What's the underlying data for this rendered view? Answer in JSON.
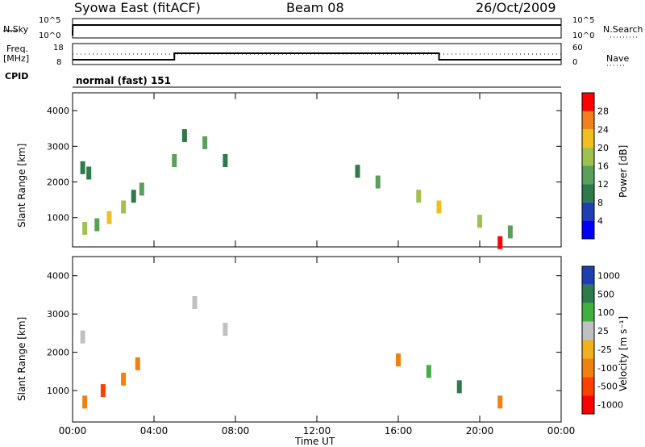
{
  "header": {
    "title": "Syowa East (fitACF)",
    "beam": "Beam 08",
    "date": "26/Oct/2009"
  },
  "top_panel": {
    "left_label": "N.Sky",
    "right_label": "N.Search",
    "left_ticks": [
      "10^5",
      "10^0"
    ],
    "right_ticks": [
      "10^5",
      "10^0"
    ]
  },
  "freq_panel": {
    "left_label_1": "Freq.",
    "left_label_2": "[MHz]",
    "right_label": "Nave",
    "left_ticks": [
      "18",
      "8"
    ],
    "right_ticks": [
      "60",
      "0"
    ]
  },
  "cpid": {
    "label": "CPID",
    "value": "normal (fast) 151"
  },
  "chart_data": [
    {
      "type": "heatmap",
      "name": "power",
      "ylabel": "Slant Range [km]",
      "y_ticks": [
        "4000",
        "3000",
        "2000",
        "1000"
      ],
      "y_tick_values": [
        4000,
        3000,
        2000,
        1000
      ],
      "ylim": [
        180,
        4500
      ],
      "colorbar_label": "Power [dB]",
      "colorbar_ticks": [
        "28",
        "24",
        "20",
        "16",
        "12",
        "8",
        "4"
      ],
      "colorbar_colors": [
        "#0000ff",
        "#1e3fb0",
        "#2e7a4a",
        "#5aa05a",
        "#a0c050",
        "#f0c020",
        "#f08020",
        "#ff0000"
      ],
      "cells": [
        {
          "t": 0.5,
          "r": 2400,
          "v": 8
        },
        {
          "t": 0.8,
          "r": 2250,
          "v": 8
        },
        {
          "t": 0.6,
          "r": 700,
          "v": 16
        },
        {
          "t": 1.2,
          "r": 800,
          "v": 12
        },
        {
          "t": 1.8,
          "r": 1000,
          "v": 20
        },
        {
          "t": 2.5,
          "r": 1300,
          "v": 16
        },
        {
          "t": 3.0,
          "r": 1600,
          "v": 8
        },
        {
          "t": 3.4,
          "r": 1800,
          "v": 12
        },
        {
          "t": 5.5,
          "r": 3300,
          "v": 8
        },
        {
          "t": 6.5,
          "r": 3100,
          "v": 12
        },
        {
          "t": 7.5,
          "r": 2600,
          "v": 8
        },
        {
          "t": 5.0,
          "r": 2600,
          "v": 12
        },
        {
          "t": 14.0,
          "r": 2300,
          "v": 8
        },
        {
          "t": 15.0,
          "r": 2000,
          "v": 12
        },
        {
          "t": 17.0,
          "r": 1600,
          "v": 16
        },
        {
          "t": 18.0,
          "r": 1300,
          "v": 20
        },
        {
          "t": 20.0,
          "r": 900,
          "v": 16
        },
        {
          "t": 21.5,
          "r": 600,
          "v": 12
        },
        {
          "t": 21.0,
          "r": 300,
          "v": 28
        }
      ]
    },
    {
      "type": "heatmap",
      "name": "velocity",
      "ylabel": "Slant Range [km]",
      "xlabel": "Time UT",
      "x_ticks": [
        "00:00",
        "04:00",
        "08:00",
        "12:00",
        "16:00",
        "20:00",
        "00:00"
      ],
      "x_tick_hours": [
        0,
        4,
        8,
        12,
        16,
        20,
        24
      ],
      "y_ticks": [
        "4000",
        "3000",
        "2000",
        "1000"
      ],
      "y_tick_values": [
        4000,
        3000,
        2000,
        1000
      ],
      "ylim": [
        180,
        4500
      ],
      "colorbar_label": "Velocity [m s⁻¹]",
      "colorbar_ticks": [
        "1000",
        "500",
        "100",
        "25",
        "-25",
        "-100",
        "-500",
        "-1000"
      ],
      "colorbar_colors": [
        "#1e3fb0",
        "#2e7a4a",
        "#40b040",
        "#c0c0c0",
        "#f0b020",
        "#f08010",
        "#ff4000",
        "#ff0000"
      ],
      "cells": [
        {
          "t": 0.5,
          "r": 2400,
          "v": 25
        },
        {
          "t": 0.6,
          "r": 700,
          "v": -100
        },
        {
          "t": 1.5,
          "r": 1000,
          "v": -500
        },
        {
          "t": 2.5,
          "r": 1300,
          "v": -100
        },
        {
          "t": 3.2,
          "r": 1700,
          "v": -100
        },
        {
          "t": 6.0,
          "r": 3300,
          "v": 25
        },
        {
          "t": 7.5,
          "r": 2600,
          "v": 25
        },
        {
          "t": 16.0,
          "r": 1800,
          "v": -100
        },
        {
          "t": 17.5,
          "r": 1500,
          "v": 100
        },
        {
          "t": 19.0,
          "r": 1100,
          "v": 500
        },
        {
          "t": 21.0,
          "r": 700,
          "v": -100
        }
      ]
    }
  ]
}
